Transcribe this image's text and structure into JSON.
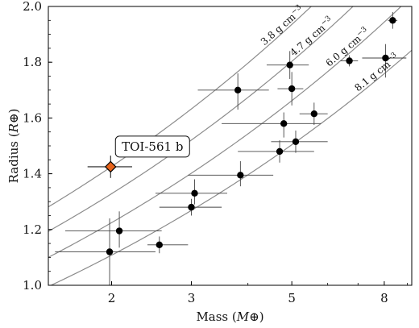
{
  "chart_data": {
    "type": "scatter",
    "title": "",
    "xlabel": "Mass",
    "xlabel_unit": "M⊕",
    "ylabel": "Radius",
    "ylabel_unit": "R⊕",
    "x_scale": "log",
    "xlim": [
      1.45,
      9.2
    ],
    "ylim": [
      1.0,
      2.0
    ],
    "x_ticks": [
      2,
      3,
      5,
      8
    ],
    "x_tick_labels": [
      "2",
      "3",
      "5",
      "8"
    ],
    "y_ticks": [
      1.0,
      1.2,
      1.4,
      1.6,
      1.8,
      2.0
    ],
    "y_tick_labels": [
      "1.0",
      "1.2",
      "1.4",
      "1.6",
      "1.8",
      "2.0"
    ],
    "grid": false,
    "colors": {
      "points": "#000000",
      "errorbars": "#444444",
      "curves": "#8c8c8c",
      "highlight_fill": "#e8641b",
      "highlight_edge": "#000000"
    },
    "density_curves": [
      {
        "label": "3.8 g cm",
        "exponent": "−3",
        "density": 3.8,
        "label_mass": 4.35
      },
      {
        "label": "4.7 g cm",
        "exponent": "−3",
        "density": 4.7,
        "label_mass": 5.05
      },
      {
        "label": "6.0 g cm",
        "exponent": "−3",
        "density": 6.0,
        "label_mass": 6.05
      },
      {
        "label": "8.1 g cm",
        "exponent": "−3",
        "density": 8.1,
        "label_mass": 7.0
      }
    ],
    "highlight": {
      "label": "TOI-561 b",
      "x": 1.99,
      "y": 1.425,
      "xerr": [
        0.22,
        0.23
      ],
      "yerr": [
        0.04,
        0.04
      ],
      "marker": "diamond"
    },
    "points": [
      {
        "x": 1.98,
        "y": 1.12,
        "xerr": [
          0.48,
          0.52
        ],
        "yerr": [
          0.12,
          0.12
        ]
      },
      {
        "x": 2.08,
        "y": 1.195,
        "xerr": [
          0.5,
          0.5
        ],
        "yerr": [
          0.06,
          0.07
        ]
      },
      {
        "x": 2.55,
        "y": 1.145,
        "xerr": [
          0.15,
          0.4
        ],
        "yerr": [
          0.03,
          0.03
        ]
      },
      {
        "x": 3.0,
        "y": 1.28,
        "xerr": [
          0.45,
          0.5
        ],
        "yerr": [
          0.03,
          0.03
        ]
      },
      {
        "x": 3.05,
        "y": 1.33,
        "xerr": [
          0.55,
          0.55
        ],
        "yerr": [
          0.04,
          0.05
        ]
      },
      {
        "x": 3.85,
        "y": 1.395,
        "xerr": [
          0.9,
          0.7
        ],
        "yerr": [
          0.04,
          0.05
        ]
      },
      {
        "x": 3.8,
        "y": 1.7,
        "xerr": [
          0.7,
          0.65
        ],
        "yerr": [
          0.07,
          0.06
        ]
      },
      {
        "x": 4.7,
        "y": 1.48,
        "xerr": [
          0.9,
          0.9
        ],
        "yerr": [
          0.04,
          0.04
        ]
      },
      {
        "x": 4.8,
        "y": 1.58,
        "xerr": [
          1.3,
          1.0
        ],
        "yerr": [
          0.05,
          0.04
        ]
      },
      {
        "x": 5.1,
        "y": 1.515,
        "xerr": [
          0.6,
          0.9
        ],
        "yerr": [
          0.04,
          0.04
        ]
      },
      {
        "x": 5.0,
        "y": 1.705,
        "xerr": [
          0.35,
          0.3
        ],
        "yerr": [
          0.06,
          0.06
        ]
      },
      {
        "x": 4.95,
        "y": 1.79,
        "xerr": [
          0.55,
          0.5
        ],
        "yerr": [
          0.05,
          0.05
        ]
      },
      {
        "x": 5.6,
        "y": 1.615,
        "xerr": [
          0.4,
          0.4
        ],
        "yerr": [
          0.04,
          0.04
        ]
      },
      {
        "x": 6.7,
        "y": 1.805,
        "xerr": [
          0.3,
          0.3
        ],
        "yerr": [
          0.02,
          0.02
        ]
      },
      {
        "x": 8.05,
        "y": 1.815,
        "xerr": [
          0.9,
          0.9
        ],
        "yerr": [
          0.07,
          0.05
        ]
      },
      {
        "x": 8.35,
        "y": 1.95,
        "xerr": [
          0.2,
          0.2
        ],
        "yerr": [
          0.03,
          0.03
        ]
      }
    ]
  }
}
